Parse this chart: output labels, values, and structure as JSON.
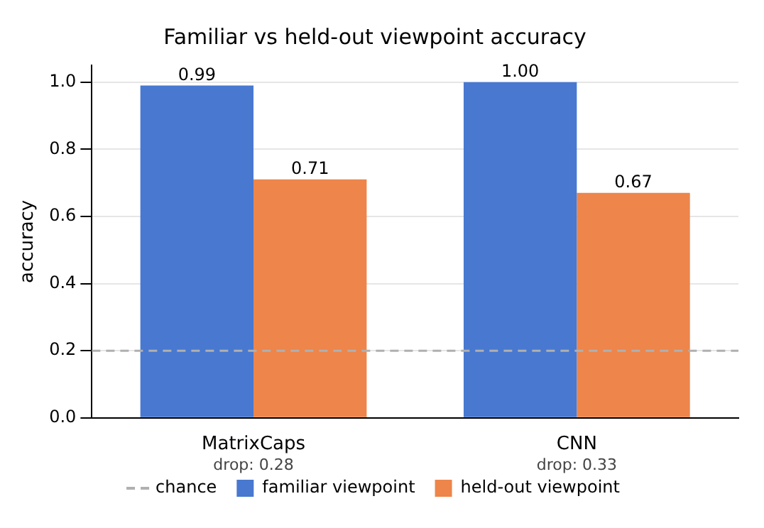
{
  "chart_data": {
    "type": "bar",
    "title": "Familiar vs held-out viewpoint accuracy",
    "ylabel": "accuracy",
    "categories": [
      "MatrixCaps",
      "CNN"
    ],
    "series": [
      {
        "name": "familiar viewpoint",
        "color": "#4878d0",
        "values": [
          0.99,
          1.0
        ],
        "value_labels": [
          "0.99",
          "1.00"
        ]
      },
      {
        "name": "held-out viewpoint",
        "color": "#ee854a",
        "values": [
          0.71,
          0.67
        ],
        "value_labels": [
          "0.71",
          "0.67"
        ]
      }
    ],
    "ylim": [
      0,
      1.05
    ],
    "yticks": [
      {
        "value": 0,
        "label": "0.0"
      },
      {
        "value": 0.2,
        "label": "0.2"
      },
      {
        "value": 0.4,
        "label": "0.4"
      },
      {
        "value": 0.6,
        "label": "0.6"
      },
      {
        "value": 0.8,
        "label": "0.8"
      },
      {
        "value": 1.0,
        "label": "1.0"
      }
    ],
    "ref_lines": [
      {
        "axis": "y",
        "value": 0.2,
        "label": "chance",
        "color": "#b0b0b0",
        "line_style": "dashed"
      }
    ],
    "annotations": [
      "drop: 0.28",
      "drop: 0.33"
    ],
    "grid": "y",
    "legend": "bottom"
  }
}
